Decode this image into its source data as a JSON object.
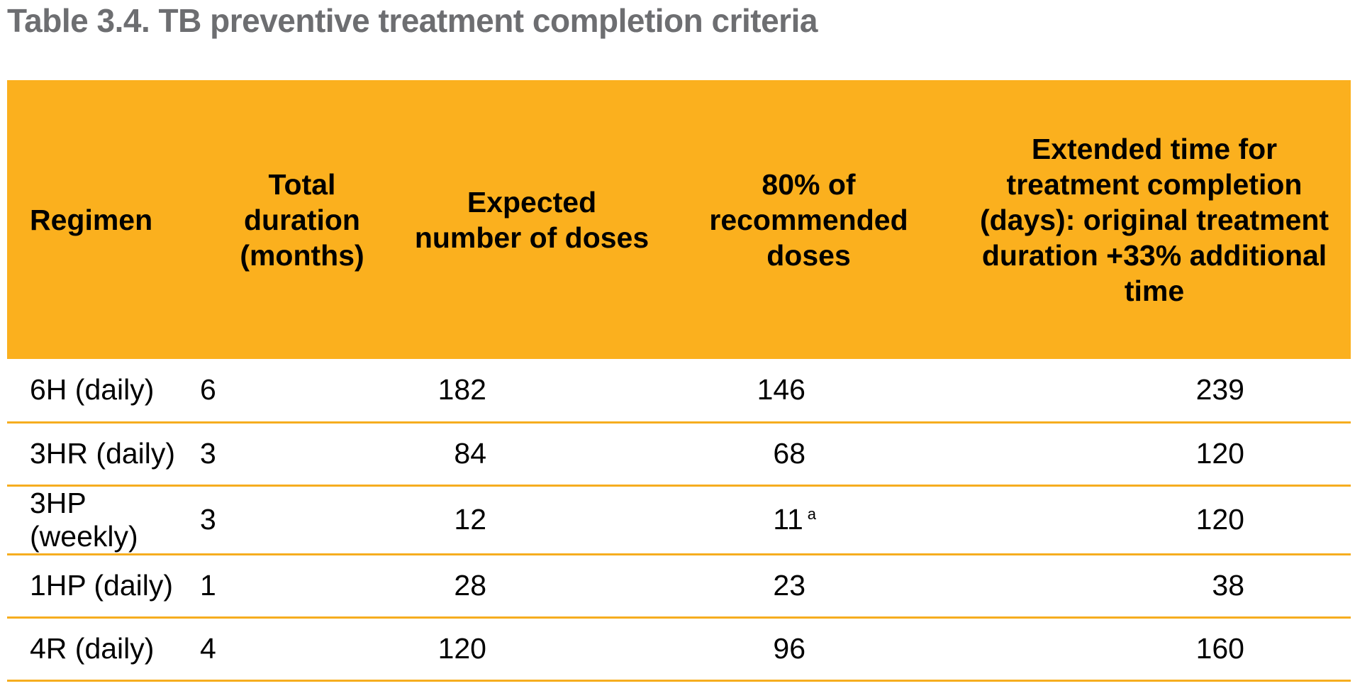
{
  "title": "Table 3.4. TB preventive treatment completion criteria",
  "table": {
    "headers": [
      "Regimen",
      "Total duration (months)",
      "Expected number of doses",
      "80% of recommended doses",
      "Extended time for treatment completion (days): original treatment duration +33% additional time"
    ],
    "rows": [
      {
        "regimen": "6H (daily)",
        "duration": "6",
        "doses": "182",
        "eighty": "146",
        "eighty_note": "",
        "extended": "239"
      },
      {
        "regimen": "3HR (daily)",
        "duration": "3",
        "doses": "84",
        "eighty": "68",
        "eighty_note": "",
        "extended": "120"
      },
      {
        "regimen": "3HP (weekly)",
        "duration": "3",
        "doses": "12",
        "eighty": "11",
        "eighty_note": "a",
        "extended": "120"
      },
      {
        "regimen": "1HP (daily)",
        "duration": "1",
        "doses": "28",
        "eighty": "23",
        "eighty_note": "",
        "extended": "38"
      },
      {
        "regimen": "4R (daily)",
        "duration": "4",
        "doses": "120",
        "eighty": "96",
        "eighty_note": "",
        "extended": "160"
      }
    ]
  },
  "colors": {
    "header_fill": "#fbb01e",
    "row_rule": "#f6ad1f",
    "title_text": "#6d6e71"
  }
}
